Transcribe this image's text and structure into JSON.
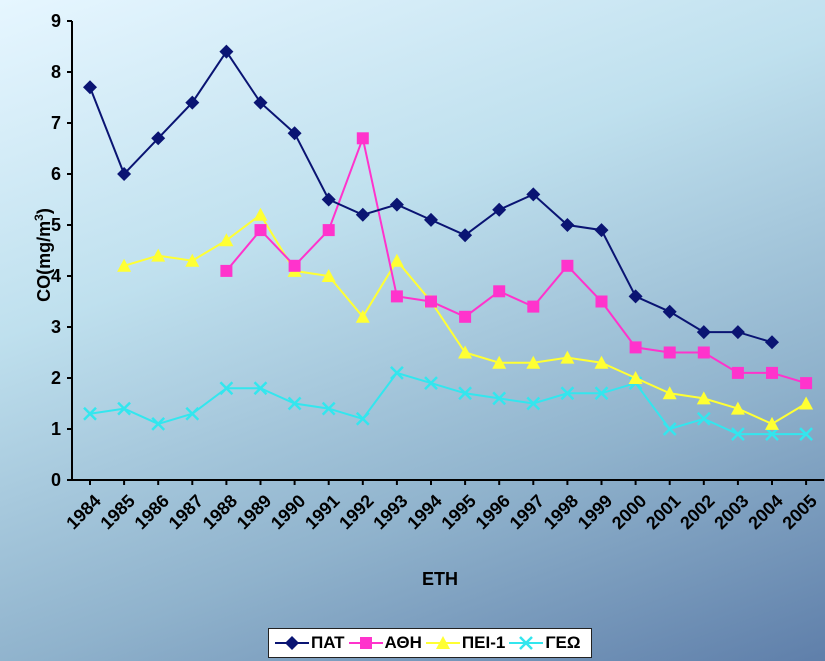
{
  "chart_data": {
    "type": "line",
    "title": "",
    "xlabel": "ΕΤΗ",
    "ylabel": "CO(mg/m",
    "ylabel_sup": "3",
    "ylabel_close": ")",
    "ylim": [
      0,
      9
    ],
    "yticks": [
      "0",
      "1",
      "2",
      "3",
      "4",
      "5",
      "6",
      "7",
      "8",
      "9"
    ],
    "grid": false,
    "legend_position": "bottom",
    "categories": [
      "1984",
      "1985",
      "1986",
      "1987",
      "1988",
      "1989",
      "1990",
      "1991",
      "1992",
      "1993",
      "1994",
      "1995",
      "1996",
      "1997",
      "1998",
      "1999",
      "2000",
      "2001",
      "2002",
      "2003",
      "2004",
      "2005"
    ],
    "series": [
      {
        "name": "ΠΑΤ",
        "color": "#0a1473",
        "marker": "diamond",
        "values": [
          7.7,
          6.0,
          6.7,
          7.4,
          8.4,
          7.4,
          6.8,
          5.5,
          5.2,
          5.4,
          5.1,
          4.8,
          5.3,
          5.6,
          5.0,
          4.9,
          3.6,
          3.3,
          2.9,
          2.9,
          2.7,
          null
        ]
      },
      {
        "name": "ΑΘΗ",
        "color": "#ff33cc",
        "marker": "square",
        "values": [
          null,
          null,
          null,
          null,
          4.1,
          4.9,
          4.2,
          4.9,
          6.7,
          3.6,
          3.5,
          3.2,
          3.7,
          3.4,
          4.2,
          3.5,
          2.6,
          2.5,
          2.5,
          2.1,
          2.1,
          1.9
        ]
      },
      {
        "name": "ΠΕΙ-1",
        "color": "#ffff33",
        "marker": "triangle",
        "values": [
          null,
          4.2,
          4.4,
          4.3,
          4.7,
          5.2,
          4.1,
          4.0,
          3.2,
          4.3,
          3.5,
          2.5,
          2.3,
          2.3,
          2.4,
          2.3,
          2.0,
          1.7,
          1.6,
          1.4,
          1.1,
          1.5
        ]
      },
      {
        "name": "ΓΕΩ",
        "color": "#33e6ee",
        "marker": "x",
        "values": [
          1.3,
          1.4,
          1.1,
          1.3,
          1.8,
          1.8,
          1.5,
          1.4,
          1.2,
          2.1,
          1.9,
          1.7,
          1.6,
          1.5,
          1.7,
          1.7,
          1.9,
          1.0,
          1.2,
          0.9,
          0.9,
          0.9
        ]
      }
    ]
  }
}
